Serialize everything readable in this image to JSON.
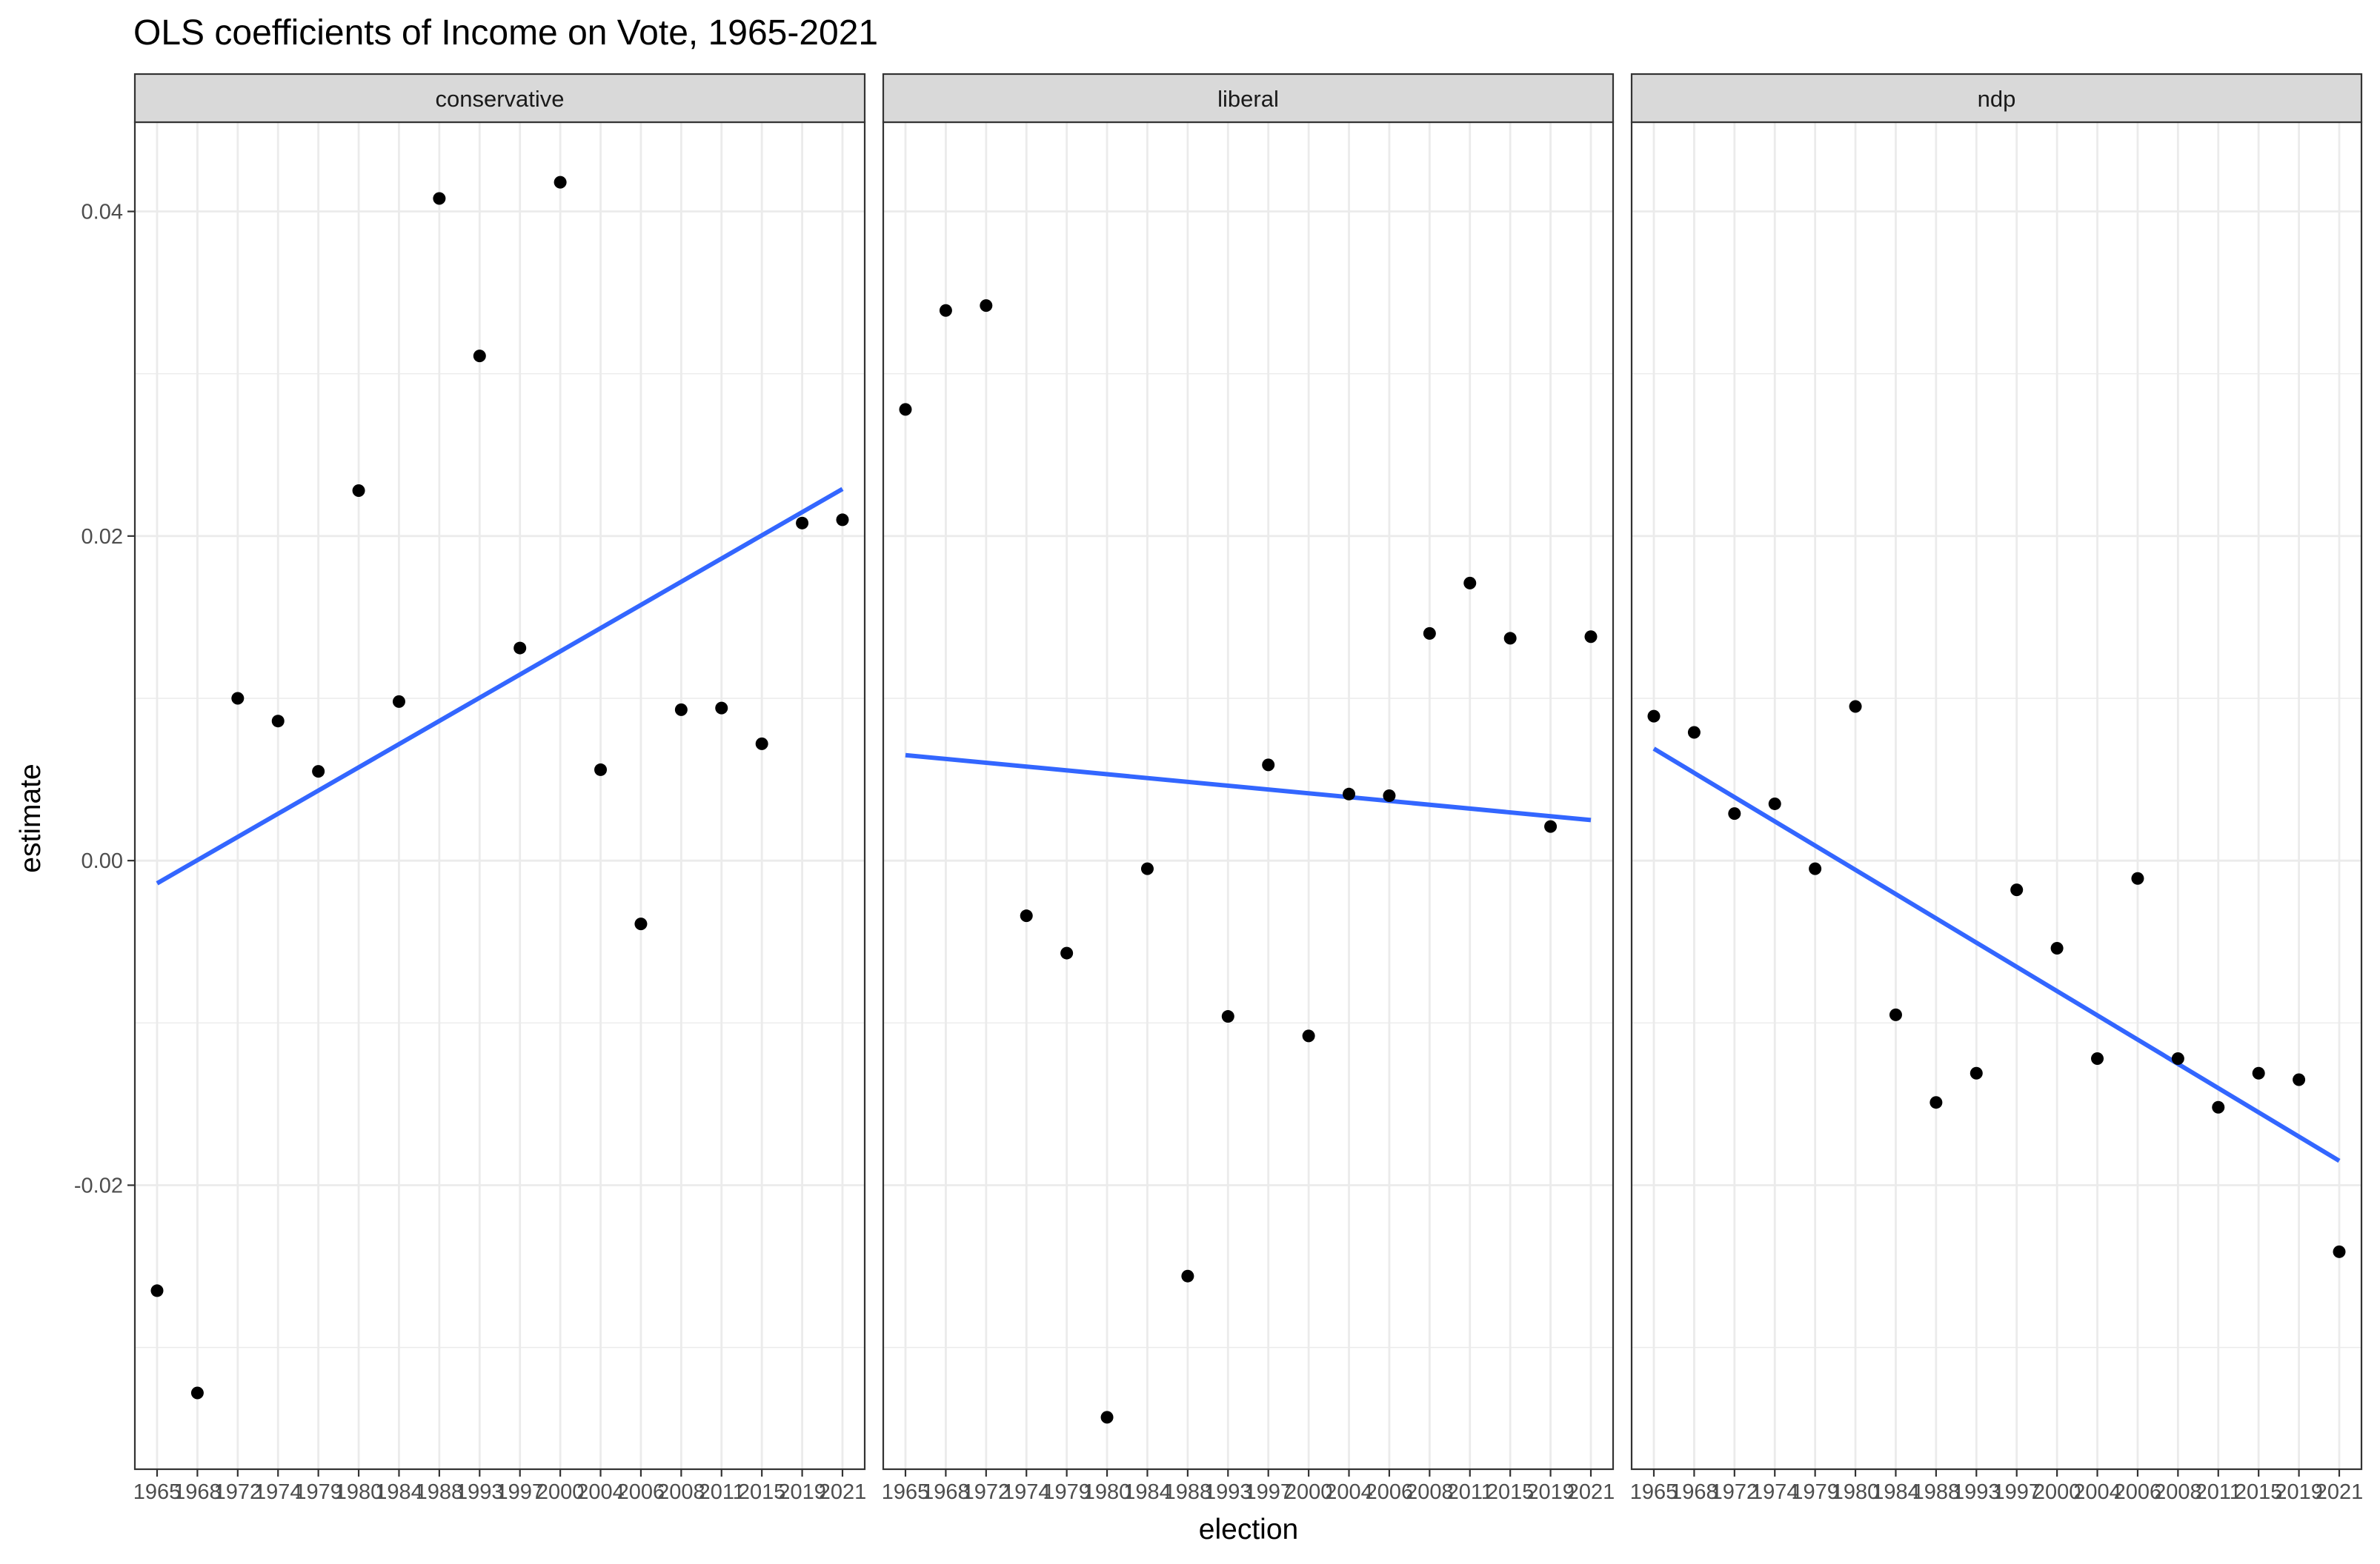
{
  "chart_data": {
    "type": "scatter",
    "title": "OLS coefficients of Income on Vote, 1965-2021",
    "xlabel": "election",
    "ylabel": "estimate",
    "ylim": [
      -0.0375,
      0.0455
    ],
    "y_ticks": [
      -0.02,
      0.0,
      0.02,
      0.04
    ],
    "y_tick_labels": [
      "-0.02",
      "0.00",
      "0.02",
      "0.04"
    ],
    "y_minor_ticks": [
      -0.03,
      -0.01,
      0.01,
      0.03
    ],
    "x_categories": [
      "1965",
      "1968",
      "1972",
      "1974",
      "1979",
      "1980",
      "1984",
      "1988",
      "1993",
      "1997",
      "2000",
      "2004",
      "2006",
      "2008",
      "2011",
      "2015",
      "2019",
      "2021"
    ],
    "grid": true,
    "theme": "bw",
    "trend_line": "linear fit (lm)",
    "colors": {
      "points": "#000000",
      "trend": "#3366FF",
      "strip": "#d9d9d9",
      "grid": "#ebebeb"
    },
    "facets": [
      {
        "label": "conservative",
        "values": [
          -0.0265,
          -0.0328,
          0.01,
          0.0086,
          0.0055,
          0.0228,
          0.0098,
          0.0408,
          0.0311,
          0.0131,
          0.0418,
          0.0056,
          -0.0039,
          0.0093,
          0.0094,
          0.0072,
          0.0208,
          0.021
        ],
        "trend": {
          "start": -0.0014,
          "end": 0.0229
        }
      },
      {
        "label": "liberal",
        "values": [
          0.0278,
          0.0339,
          0.0342,
          -0.0034,
          -0.0057,
          -0.0343,
          -0.0005,
          -0.0256,
          -0.0096,
          0.0059,
          -0.0108,
          0.0041,
          0.004,
          0.014,
          0.0171,
          0.0137,
          0.0021,
          0.0138
        ],
        "trend": {
          "start": 0.0065,
          "end": 0.0025
        }
      },
      {
        "label": "ndp",
        "values": [
          0.0089,
          0.0079,
          0.0029,
          0.0035,
          -0.0005,
          0.0095,
          -0.0095,
          -0.0149,
          -0.0131,
          -0.0018,
          -0.0054,
          -0.0122,
          -0.0011,
          -0.0122,
          -0.0152,
          -0.0131,
          -0.0135,
          -0.0241
        ],
        "trend": {
          "start": 0.0069,
          "end": -0.0185
        }
      }
    ]
  }
}
